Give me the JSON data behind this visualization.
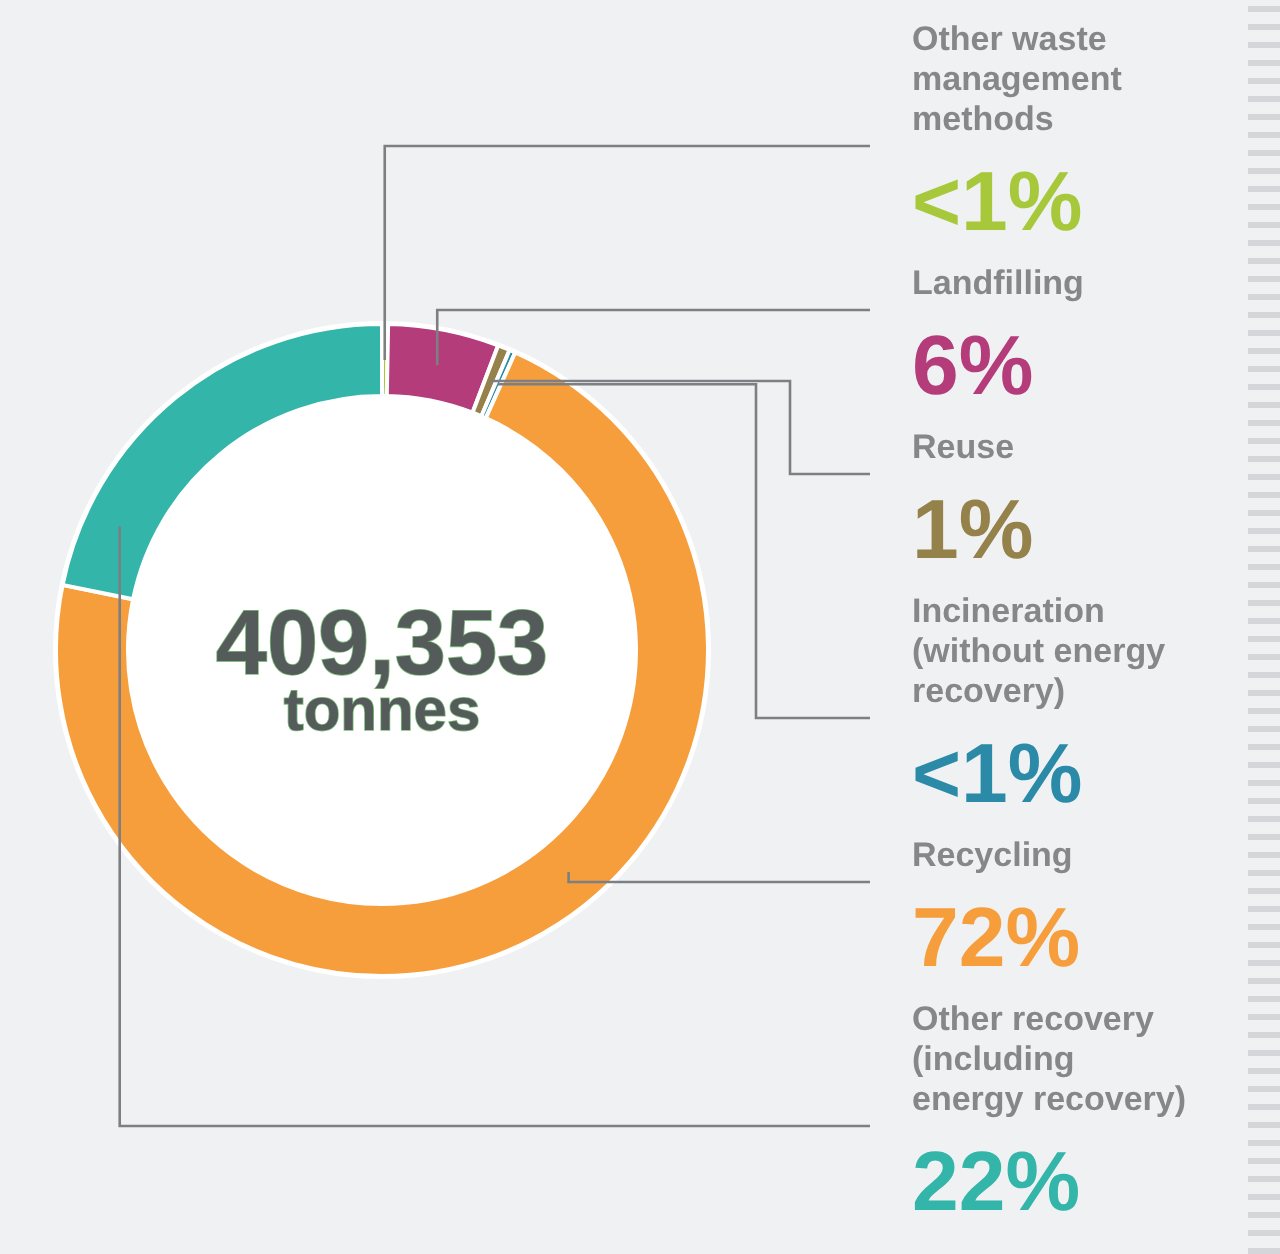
{
  "chart_data": {
    "type": "donut",
    "categories": [
      "Other waste management methods",
      "Landfilling",
      "Reuse",
      "Incineration (without energy recovery)",
      "Recycling",
      "Other recovery (including energy recovery)"
    ],
    "values": [
      0.3,
      5.5,
      0.6,
      0.3,
      71.5,
      21.8
    ],
    "colors": [
      "#a6c83a",
      "#b43c7a",
      "#94824a",
      "#2a8aa8",
      "#f69e3c",
      "#33b5a9"
    ],
    "value_labels": [
      "<1%",
      "6%",
      "1%",
      "<1%",
      "72%",
      "22%"
    ],
    "annotations": [
      "409,353",
      "tonnes"
    ]
  }
}
